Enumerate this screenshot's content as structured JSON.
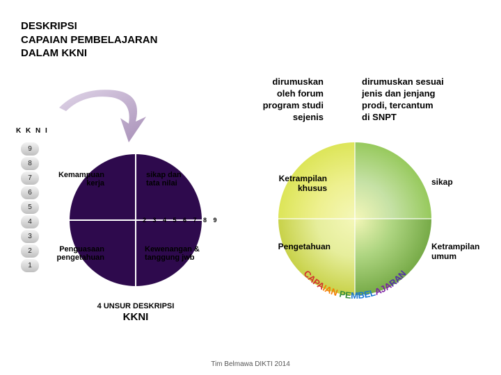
{
  "title": {
    "line1": "DESKRIPSI",
    "line2": "CAPAIAN PEMBELAJARAN",
    "line3": "DALAM KKNI"
  },
  "desc1": {
    "l1": "dirumuskan",
    "l2": "oleh forum",
    "l3": "program studi",
    "l4": "sejenis"
  },
  "desc2": {
    "l1": "dirumuskan sesuai",
    "l2": "jenis dan jenjang",
    "l3": "prodi, tercantum",
    "l4": "di SNPT"
  },
  "kkni_label": "K K N I",
  "ladder": [
    "9",
    "8",
    "7",
    "6",
    "5",
    "4",
    "3",
    "2",
    "1"
  ],
  "purple": {
    "q_tl_l1": "Kemampuan",
    "q_tl_l2": "kerja",
    "q_tr_l1": "sikap dan",
    "q_tr_l2": "tata nilai",
    "q_bl_l1": "Penguasaan",
    "q_bl_l2": "pengetahuan",
    "q_br_l1": "Kewenangan &",
    "q_br_l2": "tanggung jwb",
    "numbers": "2 3 4 5 6 7 8 9",
    "ring_colors": [
      "#2e0a4d",
      "#3d1163",
      "#4d1b78",
      "#5d258c",
      "#6e309f",
      "#7f3cb0",
      "#9250bd",
      "#a76cc9",
      "#c297db",
      "#e2cdee"
    ],
    "caption": "4 UNSUR DESKRIPSI",
    "caption2": "KKNI"
  },
  "gy": {
    "tl_label": "Ketrampilan\nkhusus",
    "tr_label": "sikap",
    "bl_label": "Pengetahuan",
    "br_label": "Ketrampilan\numum",
    "colors": {
      "tl_outer": "#d8e24a",
      "tl_inner": "#eef08f",
      "tr_outer": "#8bc34a",
      "tr_inner": "#c5e1a5",
      "bl_outer": "#c0ca33",
      "bl_inner": "#e6ee9c",
      "br_outer": "#689f38",
      "br_inner": "#aed581",
      "center": "#f4f7b8"
    },
    "arc_text": "CAPAIAN PEMBELAJARAN",
    "arc_colors": [
      "#d32f2f",
      "#f57c00",
      "#388e3c",
      "#1976d2",
      "#7b1fa2",
      "#512da8"
    ]
  },
  "arrow_color": "#b9a8c4",
  "footer": "Tim Belmawa DIKTI 2014"
}
